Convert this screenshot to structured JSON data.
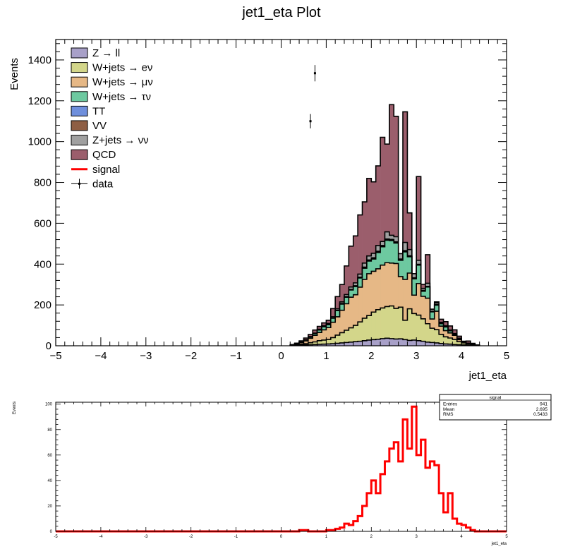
{
  "chart_data": [
    {
      "type": "area",
      "title": "jet1_eta Plot",
      "xlabel": "jet1_eta",
      "ylabel": "Events",
      "xlim": [
        -5,
        5
      ],
      "ylim": [
        0,
        1500
      ],
      "x_ticks": [
        "−5",
        "−4",
        "−3",
        "−2",
        "−1",
        "0",
        "1",
        "2",
        "3",
        "4",
        "5"
      ],
      "y_ticks": [
        "0",
        "200",
        "400",
        "600",
        "800",
        "1000",
        "1200",
        "1400"
      ],
      "legend_position": "top-left",
      "legend": [
        {
          "label": "Z → ll",
          "color": "#a8a0c8",
          "kind": "box"
        },
        {
          "label": "W+jets → eν",
          "color": "#d3d68a",
          "kind": "box"
        },
        {
          "label": "W+jets → μν",
          "color": "#e6b886",
          "kind": "box"
        },
        {
          "label": "W+jets → τν",
          "color": "#6dc9a0",
          "kind": "box"
        },
        {
          "label": "TT",
          "color": "#6f8fdc",
          "kind": "box"
        },
        {
          "label": "VV",
          "color": "#8e5e44",
          "kind": "box"
        },
        {
          "label": "Z+jets → νν",
          "color": "#a0a0a0",
          "kind": "box"
        },
        {
          "label": "QCD",
          "color": "#9b5e6c",
          "kind": "box"
        },
        {
          "label": "signal",
          "color": "#ff0000",
          "kind": "line"
        },
        {
          "label": "data",
          "color": "#000000",
          "kind": "point"
        }
      ],
      "bin_edges": [
        0.2,
        0.3,
        0.4,
        0.5,
        0.6,
        0.7,
        0.8,
        0.9,
        1.0,
        1.1,
        1.2,
        1.3,
        1.4,
        1.5,
        1.6,
        1.7,
        1.8,
        1.9,
        2.0,
        2.1,
        2.2,
        2.3,
        2.4,
        2.5,
        2.6,
        2.7,
        2.8,
        2.9,
        3.0,
        3.1,
        3.2,
        3.3,
        3.4,
        3.5,
        3.6,
        3.7,
        3.8,
        3.9,
        4.0,
        4.1,
        4.2,
        4.3,
        4.4
      ],
      "stack_series": [
        {
          "name": "Z → ll",
          "color": "#a8a0c8",
          "values": [
            1,
            2,
            3,
            4,
            5,
            6,
            7,
            8,
            9,
            10,
            12,
            14,
            16,
            18,
            20,
            22,
            25,
            28,
            30,
            32,
            35,
            37,
            35,
            33,
            34,
            30,
            26,
            28,
            25,
            22,
            18,
            16,
            14,
            11,
            9,
            8,
            6,
            5,
            4,
            2,
            1,
            1
          ]
        },
        {
          "name": "W+jets → eν",
          "color": "#d3d68a",
          "values": [
            1,
            2,
            4,
            6,
            10,
            13,
            18,
            20,
            22,
            30,
            40,
            50,
            60,
            70,
            80,
            95,
            110,
            120,
            135,
            145,
            150,
            155,
            160,
            150,
            155,
            95,
            155,
            130,
            125,
            110,
            90,
            70,
            65,
            45,
            35,
            30,
            25,
            15,
            10,
            6,
            3,
            2
          ]
        },
        {
          "name": "W+jets → μν",
          "color": "#e6b886",
          "values": [
            2,
            4,
            8,
            14,
            22,
            32,
            40,
            50,
            58,
            75,
            90,
            110,
            130,
            150,
            150,
            170,
            190,
            205,
            200,
            200,
            210,
            215,
            210,
            220,
            150,
            200,
            175,
            90,
            155,
            110,
            125,
            45,
            90,
            40,
            30,
            25,
            20,
            10,
            5,
            3,
            2,
            1
          ]
        },
        {
          "name": "W+jets → τν",
          "color": "#6dc9a0",
          "values": [
            1,
            2,
            3,
            5,
            6,
            8,
            12,
            15,
            14,
            20,
            30,
            30,
            32,
            35,
            40,
            45,
            55,
            62,
            60,
            80,
            90,
            110,
            110,
            100,
            80,
            135,
            80,
            80,
            90,
            25,
            55,
            35,
            30,
            12,
            18,
            10,
            5,
            5,
            2,
            1,
            1,
            0
          ]
        },
        {
          "name": "TT",
          "color": "#6f8fdc",
          "values": [
            0,
            0,
            0,
            0,
            0,
            0,
            0,
            0,
            0,
            0,
            1,
            1,
            1,
            1,
            1,
            1,
            2,
            2,
            2,
            2,
            2,
            2,
            2,
            2,
            2,
            2,
            2,
            2,
            1,
            1,
            1,
            1,
            1,
            1,
            0,
            0,
            0,
            0,
            0,
            0,
            0,
            0
          ]
        },
        {
          "name": "VV",
          "color": "#8e5e44",
          "values": [
            0,
            0,
            0,
            0,
            0,
            0,
            1,
            1,
            1,
            1,
            1,
            2,
            2,
            2,
            3,
            3,
            3,
            3,
            4,
            4,
            4,
            4,
            4,
            4,
            4,
            4,
            3,
            3,
            3,
            3,
            2,
            2,
            2,
            1,
            1,
            1,
            1,
            0,
            0,
            0,
            0,
            0
          ]
        },
        {
          "name": "Z+jets → νν",
          "color": "#a0a0a0",
          "values": [
            0,
            0,
            1,
            1,
            2,
            3,
            3,
            4,
            5,
            6,
            7,
            8,
            10,
            12,
            14,
            15,
            20,
            20,
            22,
            28,
            20,
            35,
            20,
            25,
            26,
            40,
            30,
            20,
            20,
            10,
            15,
            10,
            8,
            5,
            5,
            3,
            3,
            2,
            1,
            1,
            0,
            0
          ]
        },
        {
          "name": "QCD",
          "color": "#9b5e6c",
          "values": [
            1,
            3,
            5,
            8,
            10,
            15,
            14,
            14,
            16,
            40,
            60,
            85,
            140,
            200,
            230,
            290,
            300,
            380,
            350,
            390,
            510,
            430,
            640,
            590,
            0,
            640,
            180,
            0,
            410,
            20,
            140,
            0,
            5,
            15,
            20,
            20,
            18,
            10,
            0,
            10,
            5,
            0
          ]
        }
      ],
      "data_points": [
        {
          "x": 0.65,
          "y": 1100,
          "yerr": 35
        },
        {
          "x": 0.75,
          "y": 1335,
          "yerr": 40
        }
      ]
    },
    {
      "type": "line",
      "xlabel": "jet1_eta",
      "ylabel": "Events",
      "xlim": [
        -5,
        5
      ],
      "ylim": [
        0,
        100
      ],
      "x_ticks": [
        "-5",
        "-4",
        "-3",
        "-2",
        "-1",
        "0",
        "1",
        "2",
        "3",
        "4",
        "5"
      ],
      "y_ticks": [
        "0",
        "20",
        "40",
        "60",
        "80",
        "100"
      ],
      "series": [
        {
          "name": "signal",
          "color": "#ff0000",
          "bin_edges": [
            0.2,
            0.3,
            0.4,
            0.5,
            0.6,
            0.7,
            0.8,
            0.9,
            1.0,
            1.1,
            1.2,
            1.3,
            1.4,
            1.5,
            1.6,
            1.7,
            1.8,
            1.9,
            2.0,
            2.1,
            2.2,
            2.3,
            2.4,
            2.5,
            2.6,
            2.7,
            2.8,
            2.9,
            3.0,
            3.1,
            3.2,
            3.3,
            3.4,
            3.5,
            3.6,
            3.7,
            3.8,
            3.9,
            4.0,
            4.1,
            4.2,
            4.3,
            4.4
          ],
          "values": [
            0,
            0,
            1,
            1,
            0,
            0,
            0,
            0,
            1,
            1,
            2,
            3,
            6,
            5,
            8,
            12,
            20,
            30,
            40,
            30,
            45,
            55,
            65,
            70,
            55,
            88,
            65,
            98,
            60,
            72,
            50,
            55,
            52,
            30,
            15,
            30,
            10,
            6,
            5,
            3,
            1,
            0
          ]
        }
      ],
      "stats_box": {
        "title": "signal",
        "rows": [
          {
            "label": "Entries",
            "value": "941"
          },
          {
            "label": "Mean",
            "value": "2.695"
          },
          {
            "label": "RMS",
            "value": "0.5433"
          }
        ]
      }
    }
  ]
}
